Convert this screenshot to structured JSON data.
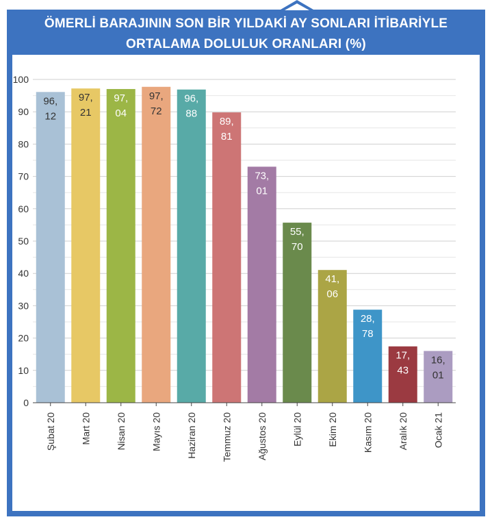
{
  "chart_data": {
    "type": "bar",
    "title_lines": [
      "ÖMERLİ BARAJININ SON BİR YILDAKİ AY SONLARI İTİBARİYLE",
      "ORTALAMA DOLULUK ORANLARI (%)"
    ],
    "xlabel": "",
    "ylabel": "",
    "ylim": [
      0,
      100
    ],
    "yticks": [
      "0",
      "10",
      "20",
      "30",
      "40",
      "50",
      "60",
      "70",
      "80",
      "90",
      "100"
    ],
    "grid": true,
    "categories": [
      "Şubat 20",
      "Mart 20",
      "Nisan 20",
      "Mayıs 20",
      "Haziran 20",
      "Temmuz 20",
      "Ağustos 20",
      "Eylül 20",
      "Ekim 20",
      "Kasım 20",
      "Aralık 20",
      "Ocak 21"
    ],
    "values": [
      96.12,
      97.21,
      97.04,
      97.72,
      96.88,
      89.81,
      73.01,
      55.7,
      41.06,
      28.78,
      17.43,
      16.01
    ],
    "data_labels": [
      [
        "96,",
        "12"
      ],
      [
        "97,",
        "21"
      ],
      [
        "97,",
        "04"
      ],
      [
        "97,",
        "72"
      ],
      [
        "96,",
        "88"
      ],
      [
        "89,",
        "81"
      ],
      [
        "73,",
        "01"
      ],
      [
        "55,",
        "70"
      ],
      [
        "41,",
        "06"
      ],
      [
        "28,",
        "78"
      ],
      [
        "17,",
        "43"
      ],
      [
        "16,",
        "01"
      ]
    ],
    "colors": [
      "#a9c1d6",
      "#e7c865",
      "#9cb646",
      "#e9a77e",
      "#58aaa7",
      "#cd7575",
      "#a37ba5",
      "#6a8a4c",
      "#aba545",
      "#3e95c8",
      "#9b3a41",
      "#ab9cc1"
    ],
    "label_colors": [
      "#333333",
      "#333333",
      "#ffffff",
      "#333333",
      "#ffffff",
      "#ffffff",
      "#ffffff",
      "#ffffff",
      "#ffffff",
      "#ffffff",
      "#ffffff",
      "#333333"
    ]
  }
}
